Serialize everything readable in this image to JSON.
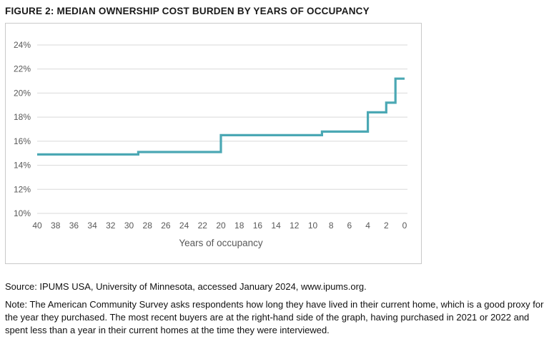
{
  "title": "FIGURE 2: MEDIAN OWNERSHIP COST BURDEN BY YEARS OF OCCUPANCY",
  "source": "Source: IPUMS USA, University of Minnesota, accessed January 2024, www.ipums.org.",
  "note": "Note: The American Community Survey asks respondents how long they have lived in their current home, which is a good proxy for the year they purchased. The most recent buyers are at the right-hand side of the graph, having purchased in 2021 or 2022 and spent less than a year in their current homes at the time they were interviewed.",
  "chart_data": {
    "type": "line",
    "subtype": "step",
    "title": "",
    "xlabel": "Years of occupancy",
    "ylabel": "",
    "x_reversed": true,
    "xlim": [
      40,
      0
    ],
    "ylim": [
      10,
      24
    ],
    "xticks": [
      40,
      38,
      36,
      34,
      32,
      30,
      28,
      26,
      24,
      22,
      20,
      18,
      16,
      14,
      12,
      10,
      8,
      6,
      4,
      2,
      0
    ],
    "yticks": [
      10,
      12,
      14,
      16,
      18,
      20,
      22,
      24
    ],
    "ytick_suffix": "%",
    "grid": true,
    "legend": "none",
    "line_color": "#4BA8B4",
    "grid_color": "#d9d9d9",
    "axis_text_color": "#595959",
    "segments": [
      {
        "from_year": 40,
        "to_year": 29,
        "value": 14.9
      },
      {
        "from_year": 29,
        "to_year": 20,
        "value": 15.1
      },
      {
        "from_year": 20,
        "to_year": 9,
        "value": 16.5
      },
      {
        "from_year": 9,
        "to_year": 4,
        "value": 16.8
      },
      {
        "from_year": 4,
        "to_year": 2,
        "value": 18.4
      },
      {
        "from_year": 2,
        "to_year": 1,
        "value": 19.2
      },
      {
        "from_year": 1,
        "to_year": 0,
        "value": 21.2
      }
    ]
  }
}
